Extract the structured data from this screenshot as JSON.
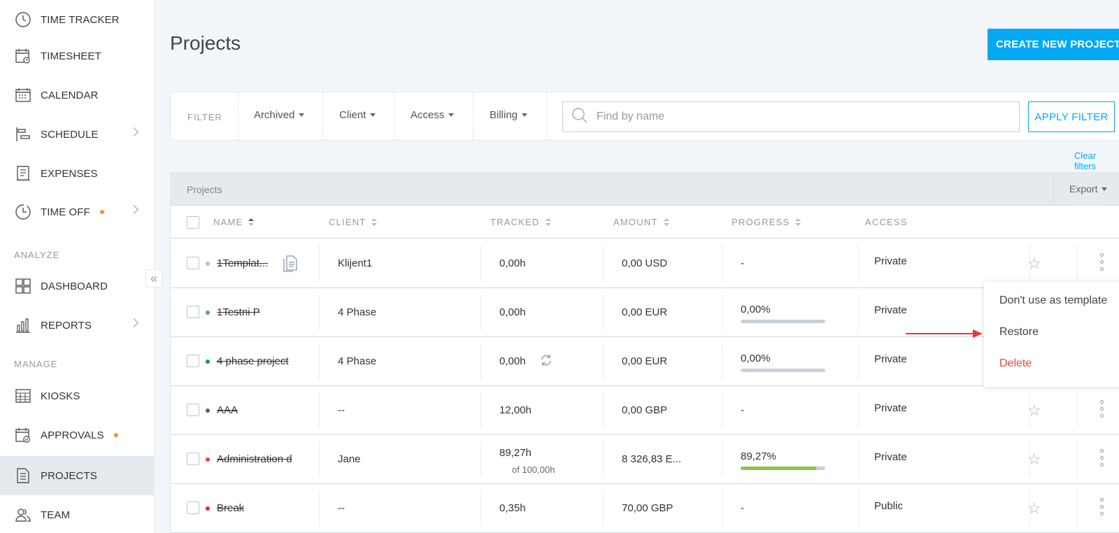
{
  "sidebar": {
    "items": [
      {
        "label": "TIME TRACKER",
        "icon": "clock-icon"
      },
      {
        "label": "TIMESHEET",
        "icon": "timesheet-icon"
      },
      {
        "label": "CALENDAR",
        "icon": "calendar-icon"
      },
      {
        "label": "SCHEDULE",
        "icon": "schedule-icon"
      },
      {
        "label": "EXPENSES",
        "icon": "receipt-icon"
      },
      {
        "label": "TIME OFF",
        "icon": "time-off-icon"
      },
      {
        "label": "DASHBOARD",
        "icon": "dashboard-icon"
      },
      {
        "label": "REPORTS",
        "icon": "bar-chart-icon"
      },
      {
        "label": "KIOSKS",
        "icon": "kiosk-icon"
      },
      {
        "label": "APPROVALS",
        "icon": "approvals-icon"
      },
      {
        "label": "PROJECTS",
        "icon": "document-icon"
      },
      {
        "label": "TEAM",
        "icon": "team-icon"
      }
    ],
    "section_analyze": "ANALYZE",
    "section_manage": "MANAGE",
    "collapse_glyph": "«"
  },
  "page": {
    "title": "Projects",
    "create_button": "CREATE NEW PROJECT"
  },
  "filter": {
    "label": "FILTER",
    "dropdowns": [
      "Archived",
      "Client",
      "Access",
      "Billing"
    ],
    "search_placeholder": "Find by name",
    "apply_button": "APPLY FILTER",
    "clear_link": "Clear filters"
  },
  "table": {
    "title": "Projects",
    "export_label": "Export",
    "headers": {
      "name": "NAME",
      "client": "CLIENT",
      "tracked": "TRACKED",
      "amount": "AMOUNT",
      "progress": "PROGRESS",
      "access": "ACCESS"
    },
    "rows": [
      {
        "name": "1Templat...",
        "color": "#a6c9cf",
        "client": "Klijent1",
        "tracked": "0,00h",
        "tracked_sub": "",
        "amount": "0,00 USD",
        "progress_text": "-",
        "progress": null,
        "access": "Private",
        "template_icon": true
      },
      {
        "name": "1Testni P",
        "color": "#4caf50",
        "client": "4 Phase",
        "tracked": "0,00h",
        "tracked_sub": "",
        "amount": "0,00 EUR",
        "progress_text": "0,00%",
        "progress": 0,
        "access": "Private"
      },
      {
        "name": "4 phase project",
        "color": "#009688",
        "client": "4 Phase",
        "tracked": "0,00h",
        "tracked_sub": "",
        "amount": "0,00 EUR",
        "progress_text": "0,00%",
        "progress": 0,
        "access": "Private",
        "recurring_icon": true
      },
      {
        "name": "AAA",
        "color": "#795548",
        "client": "--",
        "tracked": "12,00h",
        "tracked_sub": "",
        "amount": "0,00 GBP",
        "progress_text": "-",
        "progress": null,
        "access": "Private"
      },
      {
        "name": "Administration d",
        "color": "#f44336",
        "client": "Jane",
        "tracked": "89,27h",
        "tracked_sub": "of 100,00h",
        "amount": "8 326,83 E...",
        "progress_text": "89,27%",
        "progress": 0.8927,
        "access": "Private"
      },
      {
        "name": "Break",
        "color": "#e91e63",
        "client": "--",
        "tracked": "0,35h",
        "tracked_sub": "",
        "amount": "70,00 GBP",
        "progress_text": "-",
        "progress": null,
        "access": "Public"
      }
    ]
  },
  "context_menu": {
    "items": [
      {
        "label": "Don't use as template",
        "kind": "normal"
      },
      {
        "label": "Restore",
        "kind": "normal"
      },
      {
        "label": "Delete",
        "kind": "danger"
      }
    ]
  },
  "colors": {
    "accent": "#03a9f4",
    "danger": "#f44336",
    "dot_orange": "#f79526",
    "annotation_arrow": "#e53935"
  }
}
